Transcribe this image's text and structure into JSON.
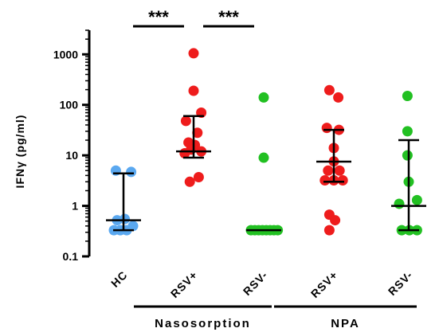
{
  "chart_data": {
    "type": "scatter",
    "ylabel": "IFNγ (pg/ml)",
    "yscale": "log",
    "ylim": [
      0.1,
      3000
    ],
    "yticks": [
      {
        "value": 0.1,
        "label": "0.1"
      },
      {
        "value": 1,
        "label": "1"
      },
      {
        "value": 10,
        "label": "10"
      },
      {
        "value": 100,
        "label": "100"
      },
      {
        "value": 1000,
        "label": "1000"
      }
    ],
    "categories": [
      "HC",
      "RSV+",
      "RSV-",
      "RSV+",
      "RSV-"
    ],
    "groups": [
      {
        "label": "Nasosorption",
        "from": 1,
        "to": 2
      },
      {
        "label": "NPA",
        "from": 3,
        "to": 4
      }
    ],
    "significance": [
      {
        "from": 0,
        "to": 1,
        "text": "***"
      },
      {
        "from": 1,
        "to": 2,
        "text": "***"
      }
    ],
    "series": [
      {
        "category": "HC",
        "color": "#5aa8f0",
        "median": 0.52,
        "low": 0.33,
        "high": 4.4,
        "points": [
          {
            "dx": -0.6,
            "y": 5.0
          },
          {
            "dx": 0.6,
            "y": 4.7
          },
          {
            "dx": -0.5,
            "y": 0.52
          },
          {
            "dx": 0.1,
            "y": 0.55
          },
          {
            "dx": -0.75,
            "y": 0.33
          },
          {
            "dx": -0.25,
            "y": 0.33
          },
          {
            "dx": 0.25,
            "y": 0.33
          },
          {
            "dx": 0.75,
            "y": 0.4
          }
        ]
      },
      {
        "category": "RSV+",
        "color": "#ee1c1c",
        "median": 12,
        "low": 9,
        "high": 60,
        "points": [
          {
            "dx": 0,
            "y": 1050
          },
          {
            "dx": 0,
            "y": 190
          },
          {
            "dx": -0.6,
            "y": 48
          },
          {
            "dx": 0.6,
            "y": 70
          },
          {
            "dx": 0.3,
            "y": 28
          },
          {
            "dx": -0.4,
            "y": 18
          },
          {
            "dx": 0.1,
            "y": 16
          },
          {
            "dx": 0.6,
            "y": 12
          },
          {
            "dx": -0.7,
            "y": 11
          },
          {
            "dx": -0.2,
            "y": 13
          },
          {
            "dx": 0.4,
            "y": 3.7
          },
          {
            "dx": -0.3,
            "y": 3.0
          }
        ]
      },
      {
        "category": "RSV-",
        "color": "#22c022",
        "median": 0.33,
        "low": 0.33,
        "high": 0.33,
        "points": [
          {
            "dx": 0,
            "y": 140
          },
          {
            "dx": 0,
            "y": 9
          },
          {
            "dx": -1.0,
            "y": 0.33
          },
          {
            "dx": -0.7,
            "y": 0.33
          },
          {
            "dx": -0.4,
            "y": 0.33
          },
          {
            "dx": -0.1,
            "y": 0.33
          },
          {
            "dx": 0.2,
            "y": 0.33
          },
          {
            "dx": 0.5,
            "y": 0.33
          },
          {
            "dx": 0.8,
            "y": 0.33
          },
          {
            "dx": 1.1,
            "y": 0.33
          }
        ]
      },
      {
        "category": "RSV+",
        "color": "#ee1c1c",
        "median": 7.5,
        "low": 3,
        "high": 32,
        "points": [
          {
            "dx": -0.35,
            "y": 195
          },
          {
            "dx": 0.35,
            "y": 140
          },
          {
            "dx": -0.55,
            "y": 35
          },
          {
            "dx": 0.4,
            "y": 32
          },
          {
            "dx": 0.0,
            "y": 14
          },
          {
            "dx": 0.0,
            "y": 7.6
          },
          {
            "dx": -0.45,
            "y": 5
          },
          {
            "dx": 0.45,
            "y": 5
          },
          {
            "dx": -0.7,
            "y": 3.2
          },
          {
            "dx": 0.0,
            "y": 3.2
          },
          {
            "dx": 0.7,
            "y": 3.2
          },
          {
            "dx": -0.35,
            "y": 0.67
          },
          {
            "dx": 0.1,
            "y": 0.52
          },
          {
            "dx": -0.35,
            "y": 0.33
          }
        ]
      },
      {
        "category": "RSV-",
        "color": "#22c022",
        "median": 1.0,
        "low": 0.33,
        "high": 20,
        "points": [
          {
            "dx": -0.1,
            "y": 150
          },
          {
            "dx": -0.1,
            "y": 30
          },
          {
            "dx": -0.1,
            "y": 10
          },
          {
            "dx": 0,
            "y": 3.0
          },
          {
            "dx": 0.65,
            "y": 1.3
          },
          {
            "dx": -0.75,
            "y": 1.1
          },
          {
            "dx": -0.55,
            "y": 0.33
          },
          {
            "dx": 0.05,
            "y": 0.33
          },
          {
            "dx": 0.65,
            "y": 0.33
          }
        ]
      }
    ]
  }
}
